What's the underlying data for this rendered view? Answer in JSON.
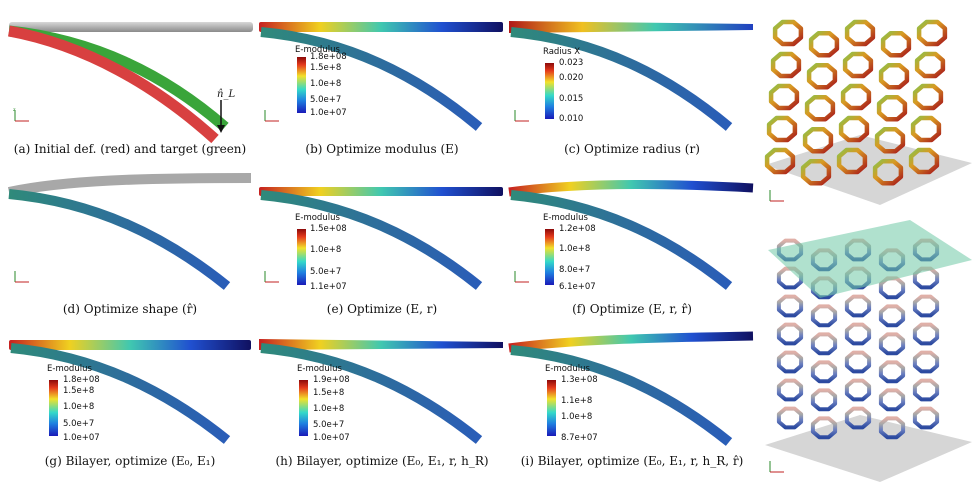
{
  "captions": {
    "a": "(a) Initial def. (red) and target (green)",
    "b": "(b) Optimize modulus (E)",
    "c": "(c) Optimize radius (r)",
    "d": "(d) Optimize shape (r̂)",
    "e": "(e) Optimize (E, r)",
    "f": "(f) Optimize (E, r, r̂)",
    "g": "(g) Bilayer, optimize (E₀, E₁)",
    "h": "(h) Bilayer, optimize (E₀, E₁, r, h_R)",
    "i": "(i) Bilayer, optimize (E₀, E₁, r, h_R, r̂)"
  },
  "load_label": "n̂_L",
  "colorbars": {
    "b": {
      "title": "E-modulus",
      "ticks": [
        "1.8e+08",
        "1.5e+8",
        "1.0e+8",
        "5.0e+7",
        "1.0e+07"
      ]
    },
    "c": {
      "title": "Radius X",
      "ticks": [
        "0.023",
        "0.020",
        "0.015",
        "0.010"
      ]
    },
    "e": {
      "title": "E-modulus",
      "ticks": [
        "1.5e+08",
        "1.0e+8",
        "5.0e+7",
        "1.1e+07"
      ]
    },
    "f": {
      "title": "E-modulus",
      "ticks": [
        "1.2e+08",
        "1.0e+8",
        "8.0e+7",
        "6.1e+07"
      ]
    },
    "g": {
      "title": "E-modulus",
      "ticks": [
        "1.8e+08",
        "1.5e+8",
        "1.0e+8",
        "5.0e+7",
        "1.0e+07"
      ]
    },
    "h": {
      "title": "E-modulus",
      "ticks": [
        "1.9e+08",
        "1.5e+8",
        "1.0e+8",
        "5.0e+7",
        "1.0e+07"
      ]
    },
    "i": {
      "title": "E-modulus",
      "ticks": [
        "1.3e+08",
        "1.1e+8",
        "1.0e+8",
        "8.7e+07"
      ]
    }
  },
  "colors": {
    "red": "#d84040",
    "green": "#3aa53a",
    "gray": "#a8a8a8",
    "beam_blue": "#2a5db8",
    "beam_teal": "#2f8a7a",
    "lattice_warm": "#c2501e",
    "lattice_blue": "#3e5aa8",
    "plane": "#6fc9a6"
  }
}
